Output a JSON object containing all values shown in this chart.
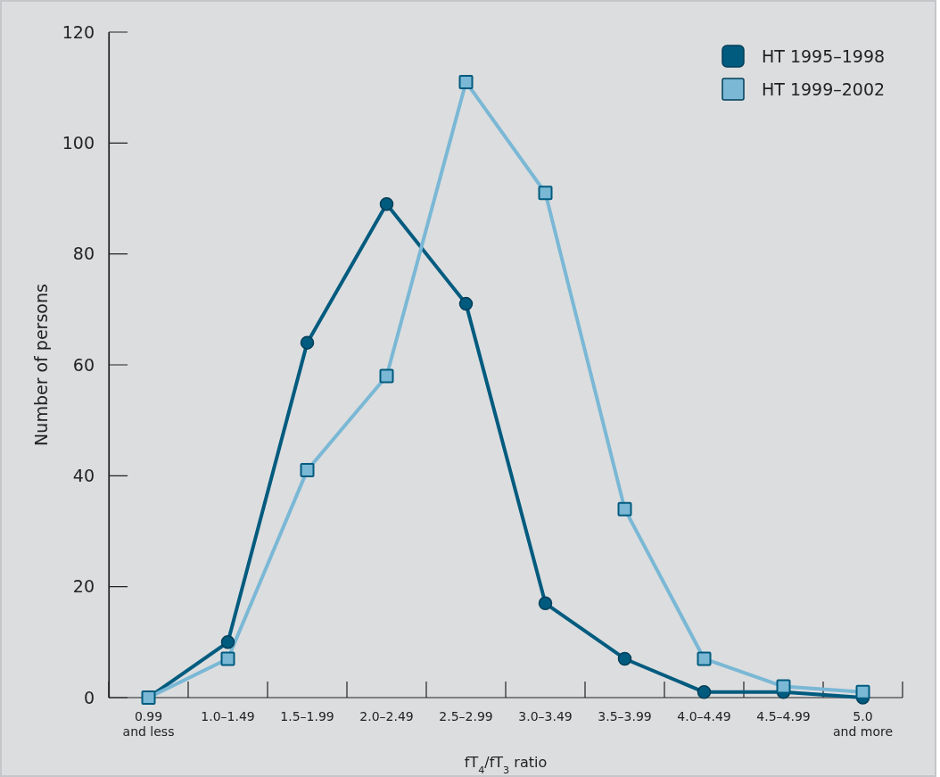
{
  "chart_data": {
    "type": "line",
    "xlabel": "fT$_{4}$/fT$_{3}$ ratio",
    "ylabel": "Number of persons",
    "categories": [
      "0.99\nand less",
      "1.0–1.49",
      "1.5–1.99",
      "2.0–2.49",
      "2.5–2.99",
      "3.0–3.49",
      "3.5–3.99",
      "4.0–4.49",
      "4.5–4.99",
      "5.0\nand more"
    ],
    "series": [
      {
        "name": "HT 1995–1998",
        "color": "#005b7f",
        "marker": "circle",
        "values": [
          0,
          10,
          64,
          89,
          71,
          17,
          7,
          1,
          1,
          0
        ]
      },
      {
        "name": "HT 1999–2002",
        "color": "#7ab8d5",
        "marker": "square",
        "values": [
          0,
          7,
          41,
          58,
          111,
          91,
          34,
          7,
          2,
          1
        ]
      }
    ],
    "ylim": [
      0,
      120
    ],
    "yticks": [
      0,
      20,
      40,
      60,
      80,
      100,
      120
    ],
    "grid": false,
    "legend": "top right",
    "line_style": "solid"
  }
}
